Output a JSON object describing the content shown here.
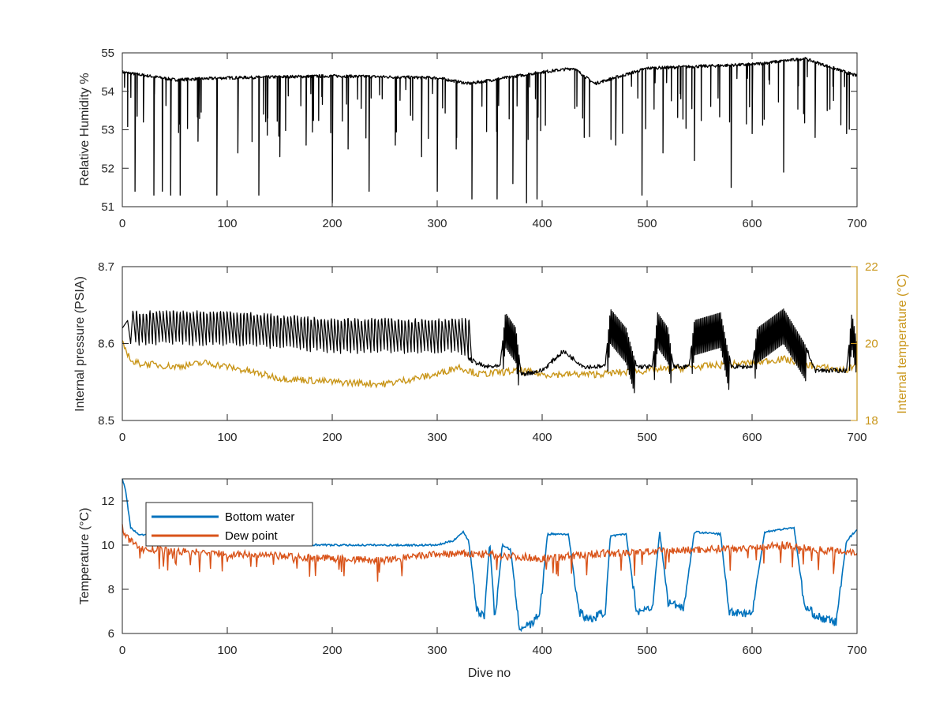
{
  "chart_data": [
    {
      "type": "line",
      "ylabel": "Relative Humidity %",
      "xlabel": "",
      "xlim": [
        0,
        700
      ],
      "ylim": [
        51,
        55
      ],
      "x_ticks": [
        "0",
        "100",
        "200",
        "300",
        "400",
        "500",
        "600",
        "700"
      ],
      "y_ticks": [
        "51",
        "52",
        "53",
        "54",
        "55"
      ],
      "grid": false,
      "series": [
        {
          "color": "#000000",
          "baseline": [
            [
              0,
              54.5
            ],
            [
              50,
              54.3
            ],
            [
              100,
              54.35
            ],
            [
              200,
              54.4
            ],
            [
              300,
              54.35
            ],
            [
              330,
              54.2
            ],
            [
              400,
              54.5
            ],
            [
              430,
              54.6
            ],
            [
              450,
              54.2
            ],
            [
              500,
              54.6
            ],
            [
              600,
              54.7
            ],
            [
              650,
              54.85
            ],
            [
              700,
              54.4
            ]
          ],
          "dips": [
            [
              12,
              51.4
            ],
            [
              20,
              53.2
            ],
            [
              30,
              51.3
            ],
            [
              38,
              51.4
            ],
            [
              46,
              51.3
            ],
            [
              55,
              51.3
            ],
            [
              72,
              52.7
            ],
            [
              90,
              51.3
            ],
            [
              110,
              52.4
            ],
            [
              130,
              51.3
            ],
            [
              150,
              52.3
            ],
            [
              175,
              52.6
            ],
            [
              200,
              51.1
            ],
            [
              215,
              52.5
            ],
            [
              235,
              51.4
            ],
            [
              260,
              52.6
            ],
            [
              285,
              52.3
            ],
            [
              300,
              51.4
            ],
            [
              318,
              52.5
            ],
            [
              333,
              51.2
            ],
            [
              357,
              51.2
            ],
            [
              372,
              51.6
            ],
            [
              385,
              51.1
            ],
            [
              395,
              51.2
            ],
            [
              440,
              52.8
            ],
            [
              470,
              52.6
            ],
            [
              495,
              51.3
            ],
            [
              515,
              52.4
            ],
            [
              545,
              52.2
            ],
            [
              580,
              51.5
            ],
            [
              600,
              52.9
            ],
            [
              630,
              51.9
            ],
            [
              660,
              52.8
            ],
            [
              690,
              52.9
            ]
          ]
        }
      ]
    },
    {
      "type": "line",
      "ylabel": "Internal pressure (PSIA)",
      "y2label": "Internal temperature (°C)",
      "xlabel": "",
      "xlim": [
        0,
        700
      ],
      "ylim": [
        8.5,
        8.7
      ],
      "y2lim": [
        18,
        22
      ],
      "x_ticks": [
        "0",
        "100",
        "200",
        "300",
        "400",
        "500",
        "600",
        "700"
      ],
      "y_ticks": [
        "8.5",
        "8.6",
        "8.7"
      ],
      "y2_ticks": [
        "18",
        "20",
        "22"
      ],
      "grid": false,
      "series": [
        {
          "axis": "left",
          "color": "#000000",
          "oscillating": [
            [
              10,
              8.64,
              8.6
            ],
            [
              100,
              8.64,
              8.6
            ],
            [
              200,
              8.63,
              8.59
            ],
            [
              310,
              8.63,
              8.59
            ],
            [
              330,
              8.63,
              8.58
            ]
          ],
          "segments": [
            [
              330,
              8.58
            ],
            [
              345,
              8.57
            ],
            [
              360,
              8.57
            ],
            [
              365,
              8.64
            ],
            [
              375,
              8.62
            ],
            [
              380,
              8.56
            ],
            [
              400,
              8.565
            ],
            [
              420,
              8.59
            ],
            [
              440,
              8.57
            ],
            [
              460,
              8.57
            ],
            [
              465,
              8.645
            ],
            [
              480,
              8.62
            ],
            [
              490,
              8.57
            ],
            [
              505,
              8.57
            ],
            [
              510,
              8.64
            ],
            [
              520,
              8.62
            ],
            [
              525,
              8.57
            ],
            [
              540,
              8.57
            ],
            [
              545,
              8.63
            ],
            [
              570,
              8.64
            ],
            [
              580,
              8.57
            ],
            [
              600,
              8.57
            ],
            [
              605,
              8.62
            ],
            [
              630,
              8.645
            ],
            [
              650,
              8.6
            ],
            [
              660,
              8.565
            ],
            [
              690,
              8.565
            ],
            [
              695,
              8.64
            ],
            [
              700,
              8.6
            ]
          ]
        },
        {
          "axis": "right",
          "color": "#c9961a",
          "values": [
            [
              0,
              20.0
            ],
            [
              10,
              19.5
            ],
            [
              50,
              19.4
            ],
            [
              80,
              19.5
            ],
            [
              100,
              19.4
            ],
            [
              150,
              19.1
            ],
            [
              200,
              19.0
            ],
            [
              250,
              18.95
            ],
            [
              300,
              19.2
            ],
            [
              320,
              19.4
            ],
            [
              340,
              19.2
            ],
            [
              380,
              19.3
            ],
            [
              400,
              19.2
            ],
            [
              450,
              19.2
            ],
            [
              500,
              19.3
            ],
            [
              550,
              19.4
            ],
            [
              600,
              19.5
            ],
            [
              630,
              19.6
            ],
            [
              660,
              19.4
            ],
            [
              690,
              19.3
            ],
            [
              700,
              19.5
            ]
          ]
        }
      ]
    },
    {
      "type": "line",
      "ylabel": "Temperature (°C)",
      "xlabel": "Dive no",
      "xlim": [
        0,
        700
      ],
      "ylim": [
        6,
        13
      ],
      "x_ticks": [
        "0",
        "100",
        "200",
        "300",
        "400",
        "500",
        "600",
        "700"
      ],
      "y_ticks": [
        "6",
        "8",
        "10",
        "12"
      ],
      "grid": false,
      "legend": {
        "position": "top-left"
      },
      "series": [
        {
          "name": "Bottom water",
          "color": "#0072bd",
          "values": [
            [
              0,
              13.0
            ],
            [
              3,
              12.5
            ],
            [
              8,
              10.8
            ],
            [
              15,
              10.5
            ],
            [
              50,
              10.3
            ],
            [
              100,
              10.1
            ],
            [
              200,
              10.0
            ],
            [
              300,
              10.0
            ],
            [
              315,
              10.2
            ],
            [
              325,
              10.6
            ],
            [
              330,
              10.2
            ],
            [
              338,
              7.0
            ],
            [
              345,
              6.8
            ],
            [
              350,
              10.2
            ],
            [
              355,
              6.6
            ],
            [
              362,
              10.0
            ],
            [
              370,
              9.8
            ],
            [
              378,
              6.3
            ],
            [
              390,
              6.4
            ],
            [
              398,
              7.0
            ],
            [
              405,
              10.5
            ],
            [
              425,
              10.5
            ],
            [
              435,
              7.0
            ],
            [
              445,
              6.6
            ],
            [
              460,
              7.0
            ],
            [
              465,
              10.4
            ],
            [
              480,
              10.5
            ],
            [
              490,
              7.0
            ],
            [
              505,
              7.2
            ],
            [
              512,
              10.6
            ],
            [
              520,
              7.4
            ],
            [
              535,
              7.2
            ],
            [
              545,
              10.6
            ],
            [
              570,
              10.5
            ],
            [
              578,
              7.0
            ],
            [
              600,
              6.9
            ],
            [
              612,
              10.6
            ],
            [
              640,
              10.8
            ],
            [
              650,
              7.2
            ],
            [
              665,
              6.7
            ],
            [
              680,
              6.5
            ],
            [
              690,
              10.2
            ],
            [
              700,
              10.7
            ]
          ]
        },
        {
          "name": "Dew point",
          "color": "#d95319",
          "values": [
            [
              0,
              10.8
            ],
            [
              5,
              10.3
            ],
            [
              20,
              9.8
            ],
            [
              100,
              9.6
            ],
            [
              200,
              9.4
            ],
            [
              250,
              9.3
            ],
            [
              300,
              9.6
            ],
            [
              340,
              9.6
            ],
            [
              400,
              9.4
            ],
            [
              450,
              9.6
            ],
            [
              500,
              9.7
            ],
            [
              550,
              9.8
            ],
            [
              600,
              9.9
            ],
            [
              630,
              10.0
            ],
            [
              660,
              9.8
            ],
            [
              700,
              9.7
            ]
          ]
        }
      ]
    }
  ]
}
